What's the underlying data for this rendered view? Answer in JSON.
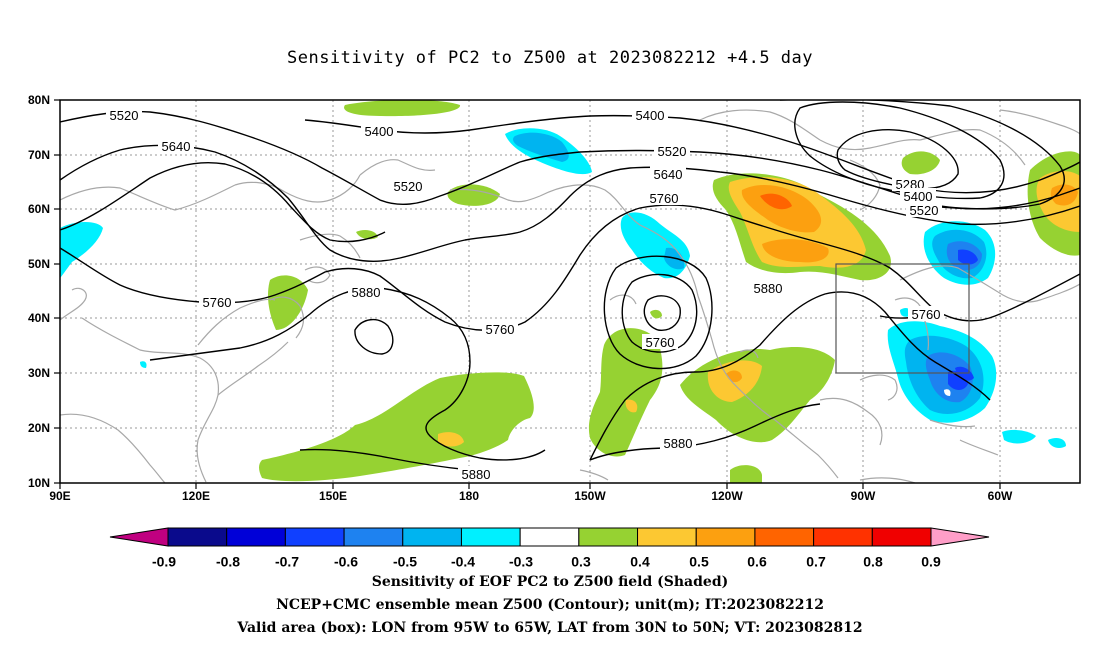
{
  "title": "Sensitivity of PC2 to Z500 at 2023082212 +4.5 day",
  "map": {
    "lon_ticks": [
      "90E",
      "120E",
      "150E",
      "180",
      "150W",
      "120W",
      "90W",
      "60W"
    ],
    "lat_ticks": [
      "80N",
      "70N",
      "60N",
      "50N",
      "40N",
      "30N",
      "20N",
      "10N"
    ],
    "contour_labels": [
      "5520",
      "5400",
      "5640",
      "5520",
      "5400",
      "5520",
      "5640",
      "5760",
      "5280",
      "5400",
      "5520",
      "5760",
      "5880",
      "5760",
      "5760",
      "5880",
      "5760",
      "5880",
      "5880"
    ],
    "valid_box": {
      "lon_from": "95W",
      "lon_to": "65W",
      "lat_from": "30N",
      "lat_to": "50N"
    }
  },
  "colorbar": {
    "labels": [
      "-0.9",
      "-0.8",
      "-0.7",
      "-0.6",
      "-0.5",
      "-0.4",
      "-0.3",
      "0.3",
      "0.4",
      "0.5",
      "0.6",
      "0.7",
      "0.8",
      "0.9"
    ],
    "colors": [
      "#0a0a8c",
      "#0000d8",
      "#1040ff",
      "#1e82f0",
      "#00b4f0",
      "#00f0ff",
      "#ffffff",
      "#96d232",
      "#fcc832",
      "#fca010",
      "#ff6400",
      "#ff3200",
      "#f00000"
    ],
    "under_color": "#c00080",
    "over_color": "#ff9ec8"
  },
  "captions": [
    "Sensitivity of EOF PC2 to Z500 field (Shaded)",
    "NCEP+CMC ensemble mean Z500 (Contour); unit(m); IT:2023082212",
    "Valid area (box): LON from 95W to 65W, LAT from 30N to 50N; VT: 2023082812"
  ]
}
